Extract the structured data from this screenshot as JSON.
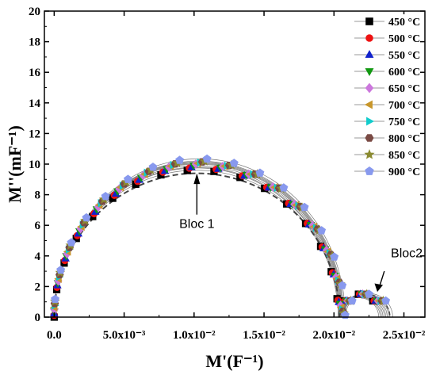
{
  "chart_data": {
    "type": "scatter",
    "title": "",
    "xlabel": "M'(F⁻¹)",
    "ylabel": "M''(mF⁻¹)",
    "xlim": [
      -0.0007,
      0.0265
    ],
    "ylim": [
      0,
      20
    ],
    "x_ticks": [
      {
        "value": 0,
        "label": "0.0"
      },
      {
        "value": 0.005,
        "label": "5.0x10⁻³"
      },
      {
        "value": 0.01,
        "label": "1.0x10⁻²"
      },
      {
        "value": 0.015,
        "label": "1.5x10⁻²"
      },
      {
        "value": 0.02,
        "label": "2.0x10⁻²"
      },
      {
        "value": 0.025,
        "label": "2.5x10⁻²"
      }
    ],
    "y_ticks": [
      0,
      2,
      4,
      6,
      8,
      10,
      12,
      14,
      16,
      18,
      20
    ],
    "legend_position": "top-right",
    "series": [
      {
        "name": "450 °C",
        "color": "#000000",
        "marker": "square",
        "peak": 9.6,
        "end": 0.0232
      },
      {
        "name": "500 °C",
        "color": "#ee1111",
        "marker": "circle",
        "peak": 9.75,
        "end": 0.0233
      },
      {
        "name": "550 °C",
        "color": "#1122cc",
        "marker": "triangle-up",
        "peak": 9.8,
        "end": 0.0234
      },
      {
        "name": "600 °C",
        "color": "#119911",
        "marker": "triangle-down",
        "peak": 9.9,
        "end": 0.0235
      },
      {
        "name": "650 °C",
        "color": "#cc77dd",
        "marker": "diamond",
        "peak": 10.0,
        "end": 0.0236
      },
      {
        "name": "700 °C",
        "color": "#c8962a",
        "marker": "triangle-left",
        "peak": 10.05,
        "end": 0.0237
      },
      {
        "name": "750 °C",
        "color": "#11cccc",
        "marker": "triangle-right",
        "peak": 10.1,
        "end": 0.0238
      },
      {
        "name": "800 °C",
        "color": "#7a4a44",
        "marker": "hexagon",
        "peak": 10.15,
        "end": 0.0239
      },
      {
        "name": "850 °C",
        "color": "#8a8a30",
        "marker": "star",
        "peak": 10.2,
        "end": 0.024
      },
      {
        "name": "900 °C",
        "color": "#8899ee",
        "marker": "pentagon",
        "peak": 10.35,
        "end": 0.0242
      }
    ],
    "annotations": [
      {
        "text": "Bloc 1",
        "x": 0.0103,
        "y": 9.2
      },
      {
        "text": "Bloc2",
        "x": 0.0232,
        "y": 1.7
      }
    ]
  }
}
